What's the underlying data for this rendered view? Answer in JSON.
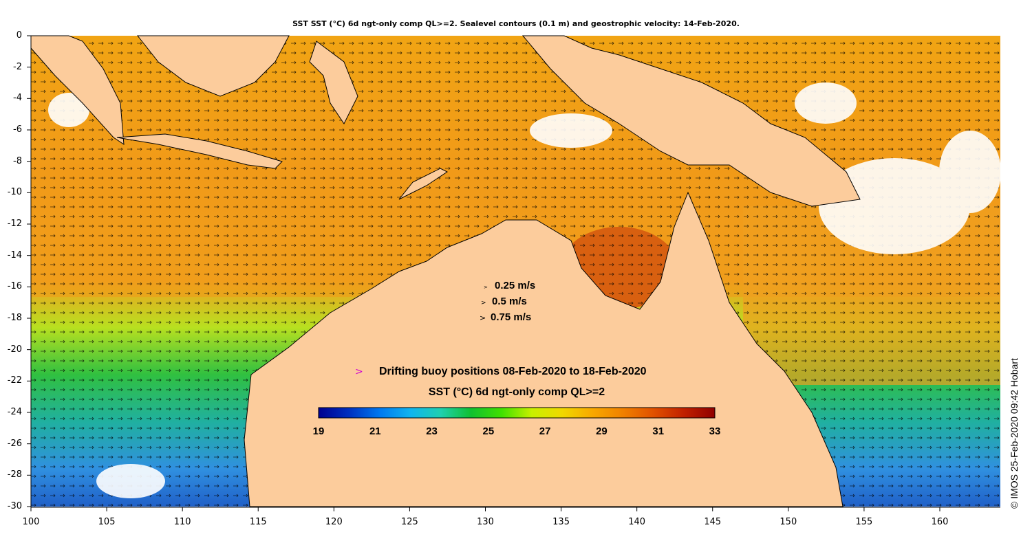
{
  "title": "SST SST (°C) 6d ngt-only comp QL>=2. Sealevel contours (0.1 m) and geostrophic velocity: 14-Feb-2020.",
  "axes": {
    "lon_range": [
      100,
      164
    ],
    "lat_range": [
      -30,
      0
    ],
    "x_ticks": [
      "100",
      "105",
      "110",
      "115",
      "120",
      "125",
      "130",
      "135",
      "140",
      "145",
      "150",
      "155",
      "160"
    ],
    "y_ticks": [
      "0",
      "-2",
      "-4",
      "-6",
      "-8",
      "-10",
      "-12",
      "-14",
      "-16",
      "-18",
      "-20",
      "-22",
      "-24",
      "-26",
      "-28",
      "-30"
    ]
  },
  "velocity_legend": {
    "glyph": ">",
    "items": [
      "0.25 m/s",
      "0.5 m/s",
      "0.75 m/s"
    ]
  },
  "buoy_legend": {
    "glyph": ">",
    "label": "Drifting buoy positions 08-Feb-2020 to 18-Feb-2020",
    "color": "#d000d0"
  },
  "colorbar": {
    "title": "SST (°C) 6d ngt-only comp QL>=2",
    "ticks": [
      "19",
      "21",
      "23",
      "25",
      "27",
      "29",
      "31",
      "33"
    ],
    "range": [
      19,
      33
    ],
    "colors": [
      "#00008f",
      "#0030c0",
      "#0078f0",
      "#10b4f0",
      "#20d0b0",
      "#10c030",
      "#40e000",
      "#c8f000",
      "#f0d800",
      "#f8a800",
      "#f08000",
      "#e05000",
      "#c02000",
      "#900000"
    ]
  },
  "credit": "© IMOS 25-Feb-2020 09:42 Hobart",
  "land_color": "#fccc9c",
  "no_data_color": "#ffffff"
}
